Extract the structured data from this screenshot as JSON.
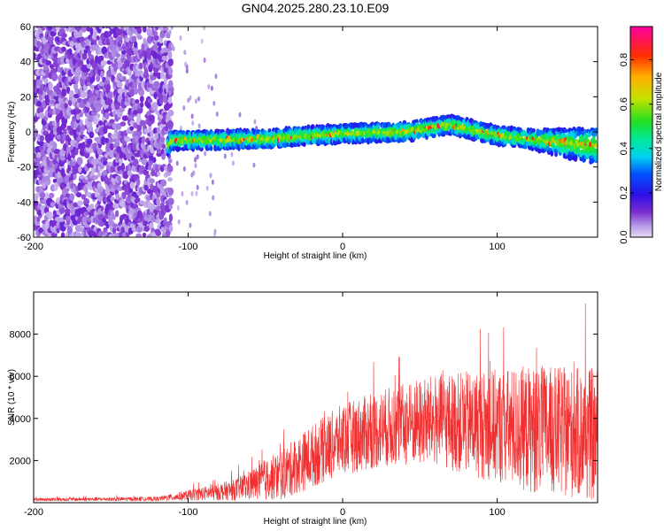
{
  "title": "GN04.2025.280.23.10.E09",
  "chart_data": [
    {
      "type": "heatmap",
      "xlabel": "Height of straight line (km)",
      "ylabel": "Frequency (Hz)",
      "xlim": [
        -200,
        165
      ],
      "ylim": [
        -60,
        60
      ],
      "xticks": [
        -200,
        -100,
        0,
        100
      ],
      "yticks": [
        -60,
        -40,
        -20,
        0,
        20,
        40,
        60
      ],
      "colorbar": {
        "label": "Normalized spectral amplitude",
        "range": [
          0.0,
          0.95
        ],
        "ticks": [
          0.0,
          0.2,
          0.4,
          0.6,
          0.8
        ],
        "tick_labels": [
          "0.0",
          "0.2",
          "0.4",
          "0.6",
          "0.8"
        ]
      },
      "description_points": [
        {
          "x": -112,
          "freq": -5
        },
        {
          "x": -50,
          "freq": -4
        },
        {
          "x": 0,
          "freq": -1
        },
        {
          "x": 40,
          "freq": 0
        },
        {
          "x": 70,
          "freq": 4
        },
        {
          "x": 100,
          "freq": -2
        },
        {
          "x": 140,
          "freq": -6
        },
        {
          "x": 165,
          "freq": -8
        }
      ]
    },
    {
      "type": "line",
      "xlabel": "Height of straight line (km)",
      "ylabel": "SNR (10 * v/v)",
      "xlim": [
        -200,
        165
      ],
      "ylim": [
        0,
        10000
      ],
      "xticks": [
        -200,
        -100,
        0,
        100
      ],
      "yticks": [
        2000,
        4000,
        6000,
        8000
      ],
      "color": "#f03030",
      "envelope": [
        {
          "x": -200,
          "mean": 150,
          "spread": 80
        },
        {
          "x": -120,
          "mean": 180,
          "spread": 100
        },
        {
          "x": -100,
          "mean": 350,
          "spread": 250
        },
        {
          "x": -70,
          "mean": 600,
          "spread": 500
        },
        {
          "x": -40,
          "mean": 1300,
          "spread": 1200
        },
        {
          "x": -20,
          "mean": 2200,
          "spread": 1500
        },
        {
          "x": 0,
          "mean": 3000,
          "spread": 1700
        },
        {
          "x": 30,
          "mean": 3600,
          "spread": 1900
        },
        {
          "x": 60,
          "mean": 3900,
          "spread": 2200
        },
        {
          "x": 90,
          "mean": 3700,
          "spread": 2600
        },
        {
          "x": 120,
          "mean": 3500,
          "spread": 3000
        },
        {
          "x": 165,
          "mean": 3200,
          "spread": 3200
        }
      ]
    }
  ]
}
